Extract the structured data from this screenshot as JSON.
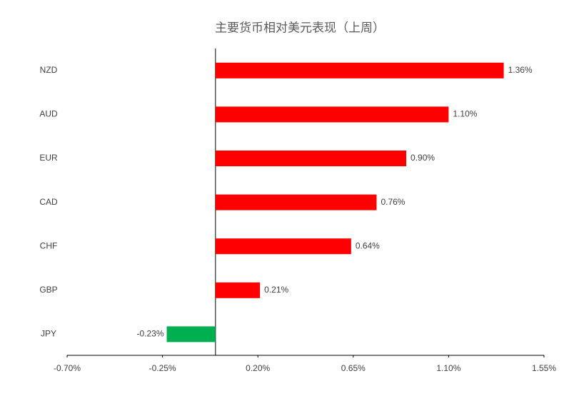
{
  "chart_data": {
    "type": "hbar",
    "title": "主要货币相对美元表现（上周）",
    "categories": [
      "NZD",
      "AUD",
      "EUR",
      "CAD",
      "CHF",
      "GBP",
      "JPY"
    ],
    "values": [
      1.36,
      1.1,
      0.9,
      0.76,
      0.64,
      0.21,
      -0.23
    ],
    "value_labels": [
      "1.36%",
      "1.10%",
      "0.90%",
      "0.76%",
      "0.64%",
      "0.21%",
      "-0.23%"
    ],
    "colors": [
      "#ff0000",
      "#ff0000",
      "#ff0000",
      "#ff0000",
      "#ff0000",
      "#ff0000",
      "#00b050"
    ],
    "xlim": [
      -0.7,
      1.55
    ],
    "xticks": [
      {
        "value": -0.7,
        "label": "-0.70%"
      },
      {
        "value": -0.25,
        "label": "-0.25%"
      },
      {
        "value": 0.2,
        "label": "0.20%"
      },
      {
        "value": 0.65,
        "label": "0.65%"
      },
      {
        "value": 1.1,
        "label": "1.10%"
      },
      {
        "value": 1.55,
        "label": "1.55%"
      }
    ]
  }
}
